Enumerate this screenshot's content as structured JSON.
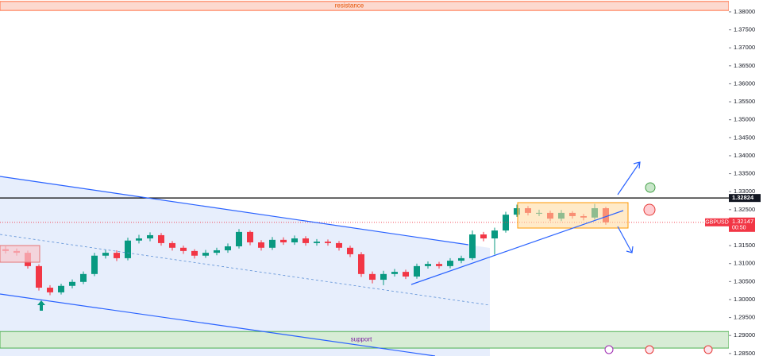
{
  "chart_data": {
    "type": "candlestick",
    "ylim": [
      1.2843,
      1.3833
    ],
    "yticks": [
      {
        "value": 1.38,
        "label": "1.38000"
      },
      {
        "value": 1.375,
        "label": "1.37500"
      },
      {
        "value": 1.37,
        "label": "1.37000"
      },
      {
        "value": 1.365,
        "label": "1.36500"
      },
      {
        "value": 1.36,
        "label": "1.36000"
      },
      {
        "value": 1.355,
        "label": "1.35500"
      },
      {
        "value": 1.35,
        "label": "1.35000"
      },
      {
        "value": 1.345,
        "label": "1.34500"
      },
      {
        "value": 1.34,
        "label": "1.34000"
      },
      {
        "value": 1.335,
        "label": "1.33500"
      },
      {
        "value": 1.33,
        "label": "1.33000"
      },
      {
        "value": 1.325,
        "label": "1.32500"
      },
      {
        "value": 1.32,
        "label": "1.32000"
      },
      {
        "value": 1.315,
        "label": "1.31500"
      },
      {
        "value": 1.31,
        "label": "1.31000"
      },
      {
        "value": 1.305,
        "label": "1.30500"
      },
      {
        "value": 1.3,
        "label": "1.30000"
      },
      {
        "value": 1.295,
        "label": "1.29500"
      },
      {
        "value": 1.29,
        "label": "1.29000"
      },
      {
        "value": 1.285,
        "label": "1.28500"
      }
    ],
    "up_color": "#089981",
    "down_color": "#f23645",
    "open": [
      1.314,
      1.3135,
      1.313,
      1.3093,
      1.3033,
      1.302,
      1.3038,
      1.3049,
      1.3071,
      1.3122,
      1.313,
      1.3115,
      1.3164,
      1.317,
      1.3179,
      1.3157,
      1.3144,
      1.3135,
      1.3122,
      1.313,
      1.3137,
      1.3148,
      1.3188,
      1.3159,
      1.3144,
      1.3166,
      1.3159,
      1.317,
      1.3157,
      1.3161,
      1.3157,
      1.3144,
      1.3126,
      1.3071,
      1.3055,
      1.3071,
      1.3077,
      1.3064,
      1.3093,
      1.3099,
      1.3093,
      1.3108,
      1.3115,
      1.3181,
      1.317,
      1.3192,
      1.3236,
      1.3254,
      1.3241,
      1.3241,
      1.3225,
      1.3241,
      1.3232,
      1.3228,
      1.3254
    ],
    "high": [
      1.3148,
      1.3142,
      1.3136,
      1.3098,
      1.304,
      1.3044,
      1.3056,
      1.3078,
      1.313,
      1.3138,
      1.3137,
      1.3172,
      1.318,
      1.3187,
      1.3185,
      1.3163,
      1.315,
      1.314,
      1.3138,
      1.3144,
      1.3156,
      1.3196,
      1.3192,
      1.3165,
      1.3174,
      1.3173,
      1.3178,
      1.3176,
      1.3168,
      1.3167,
      1.3163,
      1.315,
      1.3132,
      1.3078,
      1.308,
      1.3085,
      1.3083,
      1.31,
      1.3106,
      1.3105,
      1.3115,
      1.3122,
      1.3192,
      1.3188,
      1.32,
      1.3244,
      1.3264,
      1.326,
      1.325,
      1.3247,
      1.3249,
      1.3246,
      1.3238,
      1.3266,
      1.3258
    ],
    "low": [
      1.3128,
      1.3122,
      1.3086,
      1.3025,
      1.3012,
      1.3014,
      1.3031,
      1.3043,
      1.3065,
      1.3114,
      1.3107,
      1.3109,
      1.3156,
      1.3162,
      1.315,
      1.3136,
      1.3127,
      1.3114,
      1.3116,
      1.3123,
      1.313,
      1.3142,
      1.3151,
      1.3136,
      1.3138,
      1.3152,
      1.3152,
      1.315,
      1.315,
      1.315,
      1.3136,
      1.3118,
      1.3063,
      1.3045,
      1.304,
      1.3064,
      1.3057,
      1.3058,
      1.3086,
      1.3086,
      1.3087,
      1.3101,
      1.311,
      1.3162,
      1.3125,
      1.3186,
      1.323,
      1.3234,
      1.3232,
      1.3218,
      1.3218,
      1.3225,
      1.322,
      1.3222,
      1.3208
    ],
    "close": [
      1.3135,
      1.313,
      1.3093,
      1.3033,
      1.302,
      1.3038,
      1.3049,
      1.3071,
      1.3122,
      1.313,
      1.3115,
      1.3164,
      1.317,
      1.3179,
      1.3157,
      1.3144,
      1.3135,
      1.3122,
      1.313,
      1.3137,
      1.3148,
      1.3188,
      1.3159,
      1.3144,
      1.3166,
      1.3159,
      1.317,
      1.3157,
      1.3161,
      1.3157,
      1.3144,
      1.3126,
      1.3071,
      1.3055,
      1.3071,
      1.3077,
      1.3064,
      1.3093,
      1.3099,
      1.3093,
      1.3108,
      1.3115,
      1.3181,
      1.317,
      1.3192,
      1.3236,
      1.3254,
      1.3241,
      1.3241,
      1.3225,
      1.3241,
      1.3232,
      1.3228,
      1.3254,
      1.32147
    ],
    "resistance": {
      "label": "resistance",
      "range": [
        1.3804,
        1.3829
      ]
    },
    "support": {
      "label": "support",
      "range": [
        1.2865,
        1.2911
      ]
    },
    "level": 1.32824,
    "current": {
      "symbol": "GBPUSD",
      "value": 1.32147,
      "countdown": "00:50"
    }
  }
}
